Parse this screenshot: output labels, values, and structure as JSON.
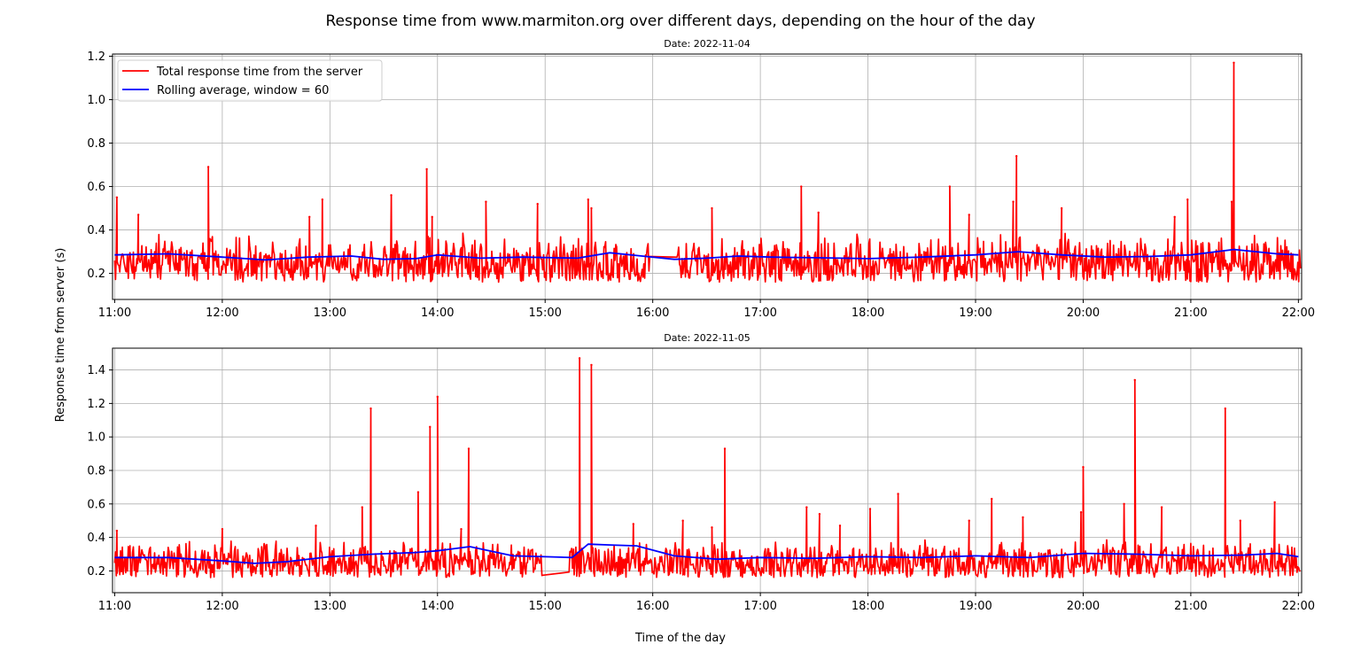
{
  "figure": {
    "suptitle": "Response time from www.marmiton.org over different days, depending on the hour of the day",
    "ylabel": "Response time from server (s)",
    "xlabel": "Time of the day"
  },
  "colors": {
    "raw": "#ff0000",
    "rolling": "#0000ff",
    "grid": "#b0b0b0"
  },
  "chart_data": [
    {
      "type": "line",
      "title": "Date: 2022-11-04",
      "xlim": [
        10.98,
        22.03
      ],
      "ylim": [
        0.08,
        1.21
      ],
      "yticks": [
        0.2,
        0.4,
        0.6,
        0.8,
        1.0,
        1.2
      ],
      "ytick_labels": [
        "0.2",
        "0.4",
        "0.6",
        "0.8",
        "1.0",
        "1.2"
      ],
      "xticks": [
        11,
        12,
        13,
        14,
        15,
        16,
        17,
        18,
        19,
        20,
        21,
        22
      ],
      "xtick_labels": [
        "11:00",
        "12:00",
        "13:00",
        "14:00",
        "15:00",
        "16:00",
        "17:00",
        "18:00",
        "19:00",
        "20:00",
        "21:00",
        "22:00"
      ],
      "grid": true,
      "legend_position": "top-left",
      "base_range": [
        0.16,
        0.39
      ],
      "gaps": [
        [
          15.98,
          16.22
        ]
      ],
      "series": [
        {
          "name": "Total response time from the server",
          "spikes": [
            [
              11.02,
              0.55
            ],
            [
              11.22,
              0.47
            ],
            [
              11.87,
              0.69
            ],
            [
              12.81,
              0.46
            ],
            [
              12.93,
              0.54
            ],
            [
              13.57,
              0.56
            ],
            [
              13.9,
              0.68
            ],
            [
              13.95,
              0.46
            ],
            [
              14.45,
              0.53
            ],
            [
              14.93,
              0.52
            ],
            [
              15.4,
              0.54
            ],
            [
              15.43,
              0.5
            ],
            [
              16.55,
              0.5
            ],
            [
              17.38,
              0.6
            ],
            [
              17.54,
              0.48
            ],
            [
              18.76,
              0.6
            ],
            [
              18.94,
              0.47
            ],
            [
              19.35,
              0.53
            ],
            [
              19.38,
              0.74
            ],
            [
              19.8,
              0.5
            ],
            [
              20.85,
              0.46
            ],
            [
              20.97,
              0.54
            ],
            [
              21.38,
              0.53
            ],
            [
              21.4,
              1.17
            ]
          ]
        },
        {
          "name": "Rolling average, window = 60",
          "x": [
            11.0,
            11.5,
            12.0,
            12.4,
            12.8,
            13.2,
            13.5,
            13.8,
            14.0,
            14.4,
            14.8,
            15.3,
            15.6,
            15.9,
            16.2,
            16.5,
            16.8,
            17.1,
            17.5,
            18.0,
            18.5,
            19.0,
            19.4,
            19.8,
            20.2,
            20.6,
            21.0,
            21.4,
            21.8,
            22.0
          ],
          "y": [
            0.285,
            0.29,
            0.275,
            0.262,
            0.275,
            0.28,
            0.265,
            0.268,
            0.285,
            0.27,
            0.275,
            0.27,
            0.295,
            0.28,
            0.265,
            0.27,
            0.28,
            0.275,
            0.272,
            0.268,
            0.275,
            0.285,
            0.3,
            0.285,
            0.275,
            0.278,
            0.285,
            0.31,
            0.29,
            0.285
          ]
        }
      ]
    },
    {
      "type": "line",
      "title": "Date: 2022-11-05",
      "xlim": [
        10.98,
        22.03
      ],
      "ylim": [
        0.07,
        1.53
      ],
      "yticks": [
        0.2,
        0.4,
        0.6,
        0.8,
        1.0,
        1.2,
        1.4
      ],
      "ytick_labels": [
        "0.2",
        "0.4",
        "0.6",
        "0.8",
        "1.0",
        "1.2",
        "1.4"
      ],
      "xticks": [
        11,
        12,
        13,
        14,
        15,
        16,
        17,
        18,
        19,
        20,
        21,
        22
      ],
      "xtick_labels": [
        "11:00",
        "12:00",
        "13:00",
        "14:00",
        "15:00",
        "16:00",
        "17:00",
        "18:00",
        "19:00",
        "20:00",
        "21:00",
        "22:00"
      ],
      "grid": true,
      "base_range": [
        0.16,
        0.39
      ],
      "gaps": [
        [
          14.98,
          15.22
        ]
      ],
      "series": [
        {
          "name": "Total response time from the server",
          "spikes": [
            [
              11.02,
              0.44
            ],
            [
              12.0,
              0.45
            ],
            [
              12.87,
              0.47
            ],
            [
              13.3,
              0.58
            ],
            [
              13.38,
              1.17
            ],
            [
              13.82,
              0.67
            ],
            [
              13.93,
              1.06
            ],
            [
              14.0,
              1.24
            ],
            [
              14.29,
              0.93
            ],
            [
              14.22,
              0.45
            ],
            [
              15.32,
              1.47
            ],
            [
              15.43,
              1.43
            ],
            [
              15.82,
              0.48
            ],
            [
              16.28,
              0.5
            ],
            [
              16.55,
              0.46
            ],
            [
              16.67,
              0.93
            ],
            [
              17.43,
              0.58
            ],
            [
              17.55,
              0.54
            ],
            [
              17.74,
              0.47
            ],
            [
              18.02,
              0.57
            ],
            [
              18.28,
              0.66
            ],
            [
              18.94,
              0.5
            ],
            [
              19.15,
              0.63
            ],
            [
              19.44,
              0.52
            ],
            [
              19.98,
              0.55
            ],
            [
              20.0,
              0.82
            ],
            [
              20.38,
              0.6
            ],
            [
              20.48,
              1.34
            ],
            [
              20.73,
              0.58
            ],
            [
              21.32,
              1.17
            ],
            [
              21.46,
              0.5
            ],
            [
              21.78,
              0.61
            ]
          ]
        },
        {
          "name": "Rolling average, window = 60",
          "x": [
            11.0,
            11.5,
            12.0,
            12.3,
            12.6,
            13.0,
            13.4,
            13.8,
            14.0,
            14.3,
            14.7,
            15.0,
            15.25,
            15.4,
            15.6,
            15.85,
            16.2,
            16.6,
            17.0,
            17.5,
            18.0,
            18.5,
            19.0,
            19.5,
            20.0,
            20.5,
            21.0,
            21.5,
            21.8,
            22.0
          ],
          "y": [
            0.28,
            0.28,
            0.26,
            0.245,
            0.255,
            0.285,
            0.3,
            0.31,
            0.32,
            0.345,
            0.29,
            0.285,
            0.28,
            0.36,
            0.355,
            0.35,
            0.29,
            0.27,
            0.28,
            0.275,
            0.285,
            0.28,
            0.29,
            0.28,
            0.305,
            0.3,
            0.29,
            0.295,
            0.305,
            0.285
          ]
        }
      ]
    }
  ]
}
